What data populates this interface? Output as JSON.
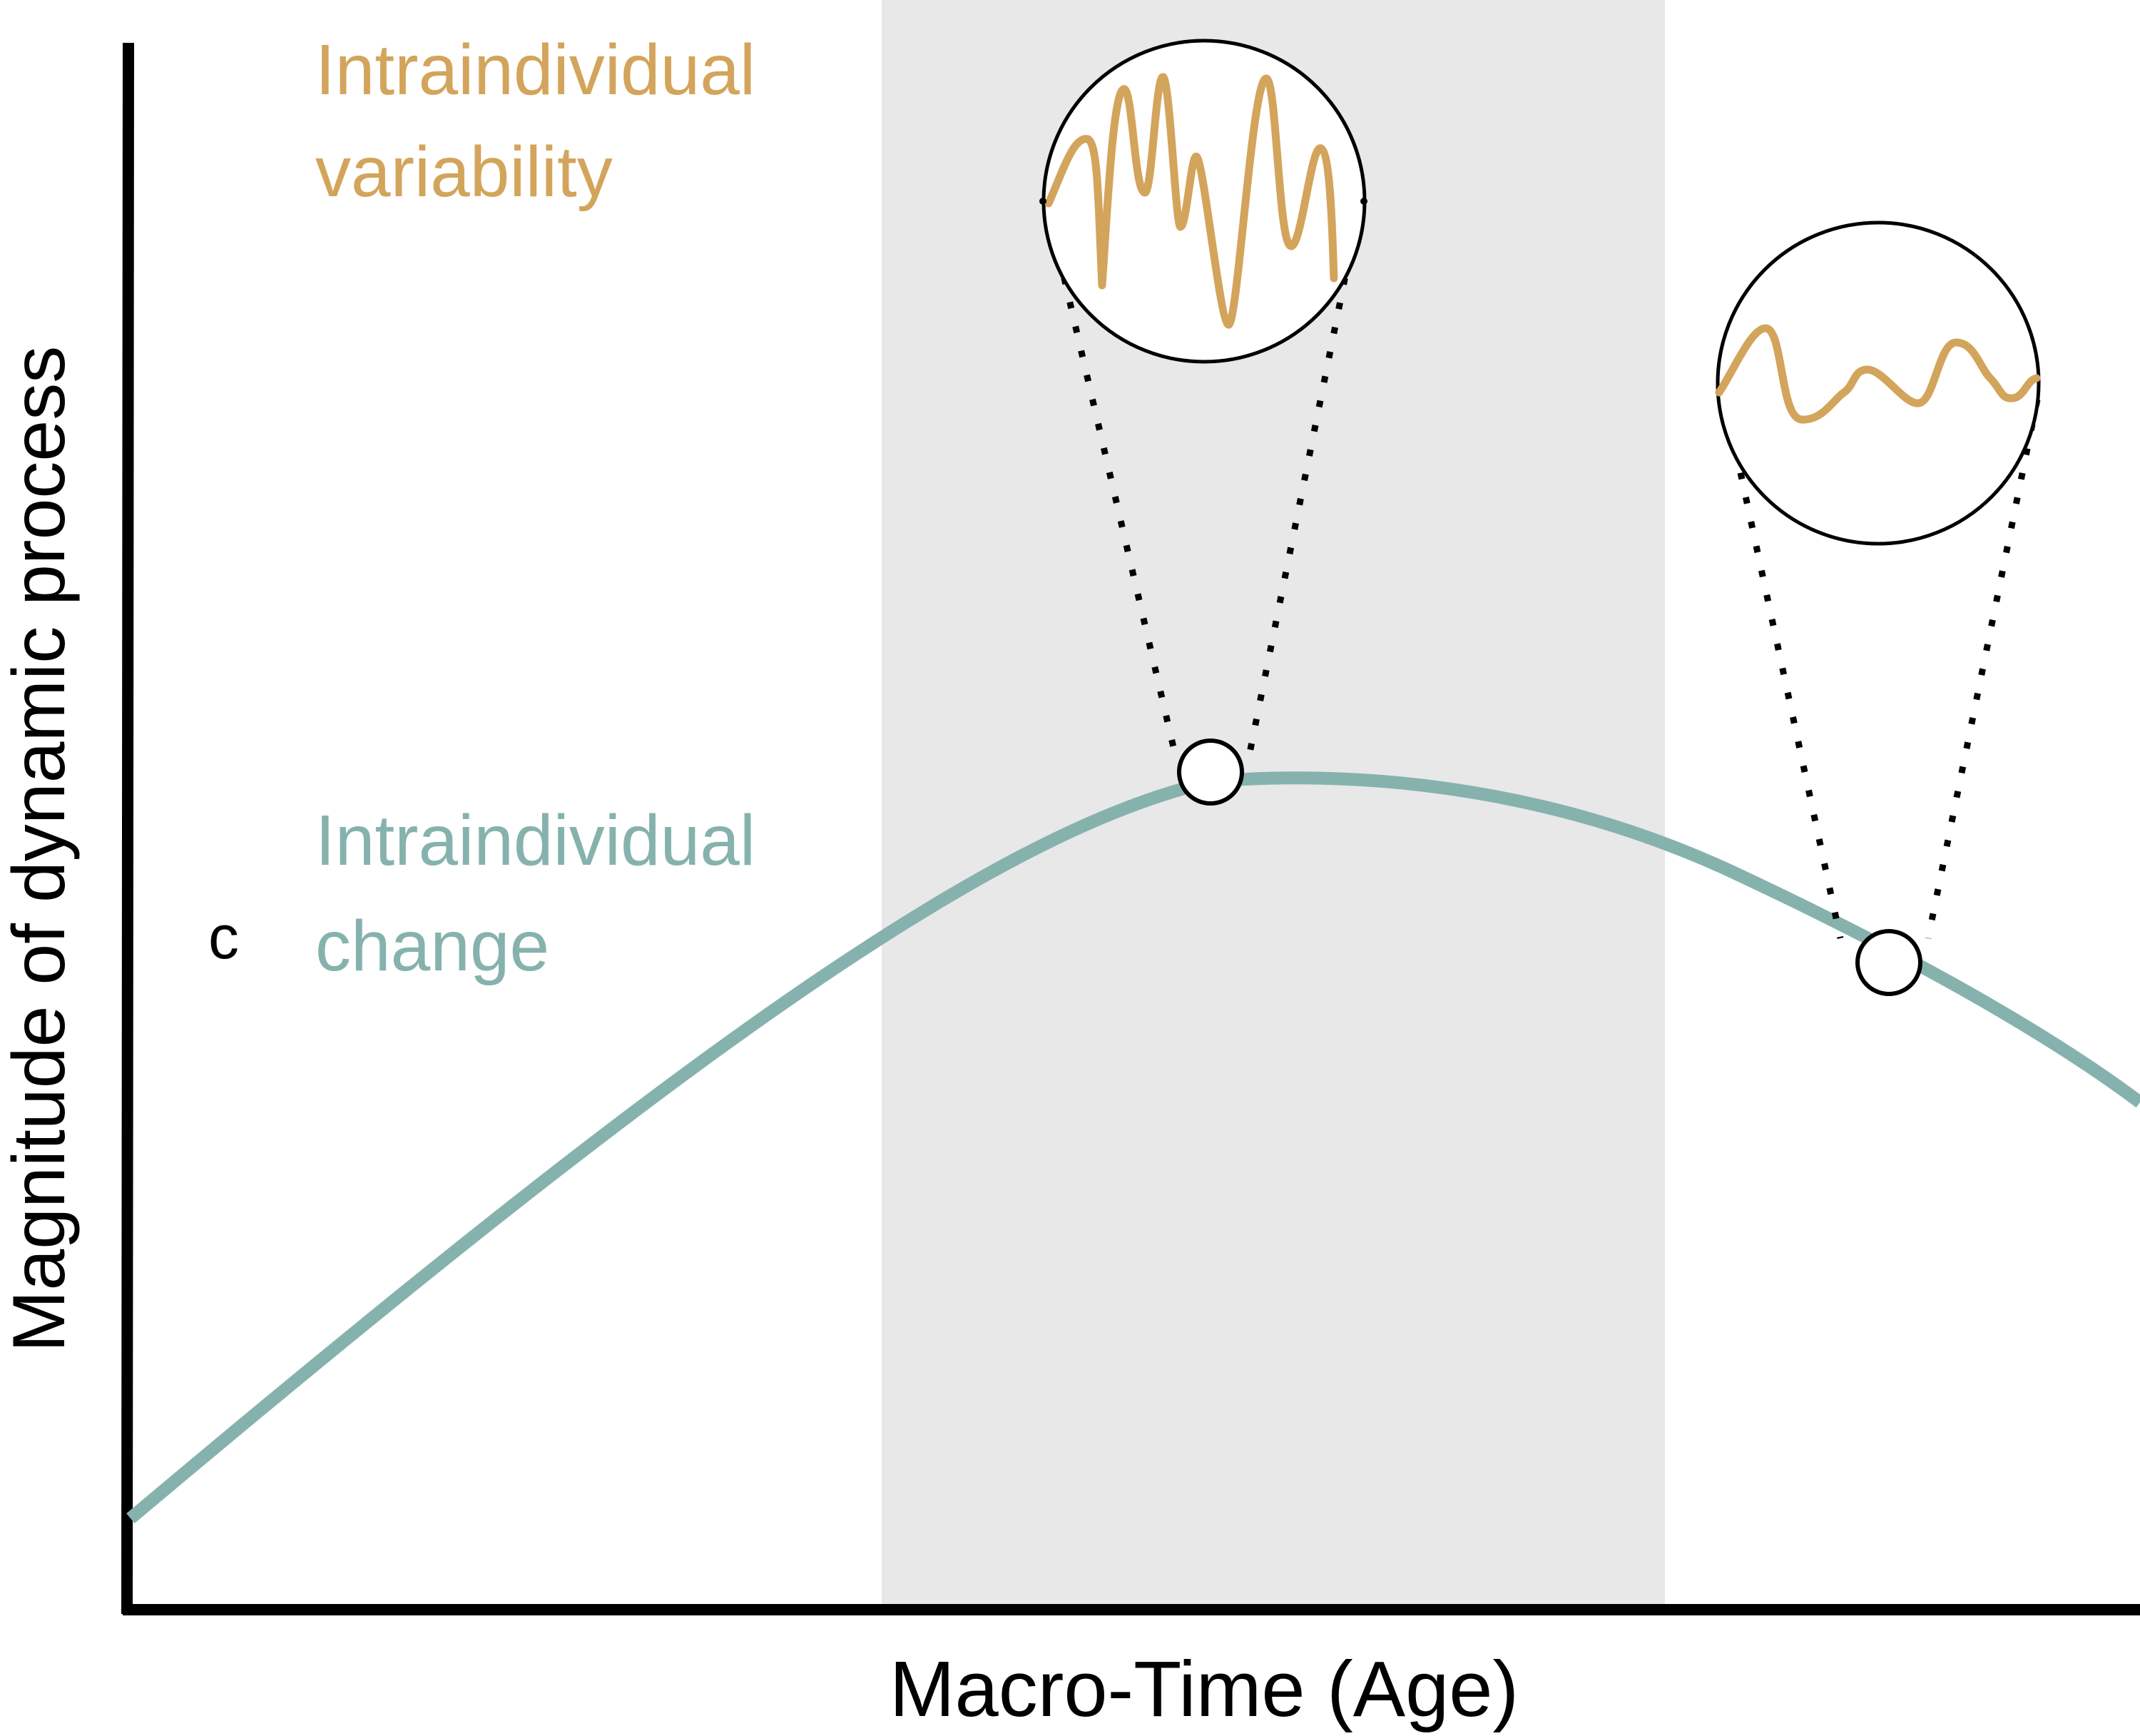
{
  "figure": {
    "panel_letter": "c",
    "x_axis_label": "Macro-Time (Age)",
    "y_axis_label": "Magnitude of dynamic process"
  },
  "labels": {
    "variability": {
      "line1": "Intraindividual",
      "line2": "variability"
    },
    "change": {
      "line1": "Intraindividual",
      "line2": "change"
    }
  },
  "colors": {
    "change_curve": "#86B2AE",
    "variability_curve": "#D3A45B",
    "shaded_region": "#E8E8E8",
    "axis": "#000000"
  },
  "icons": {
    "zoom_markers": [
      "zoom-circle-peak",
      "zoom-circle-decline"
    ]
  }
}
